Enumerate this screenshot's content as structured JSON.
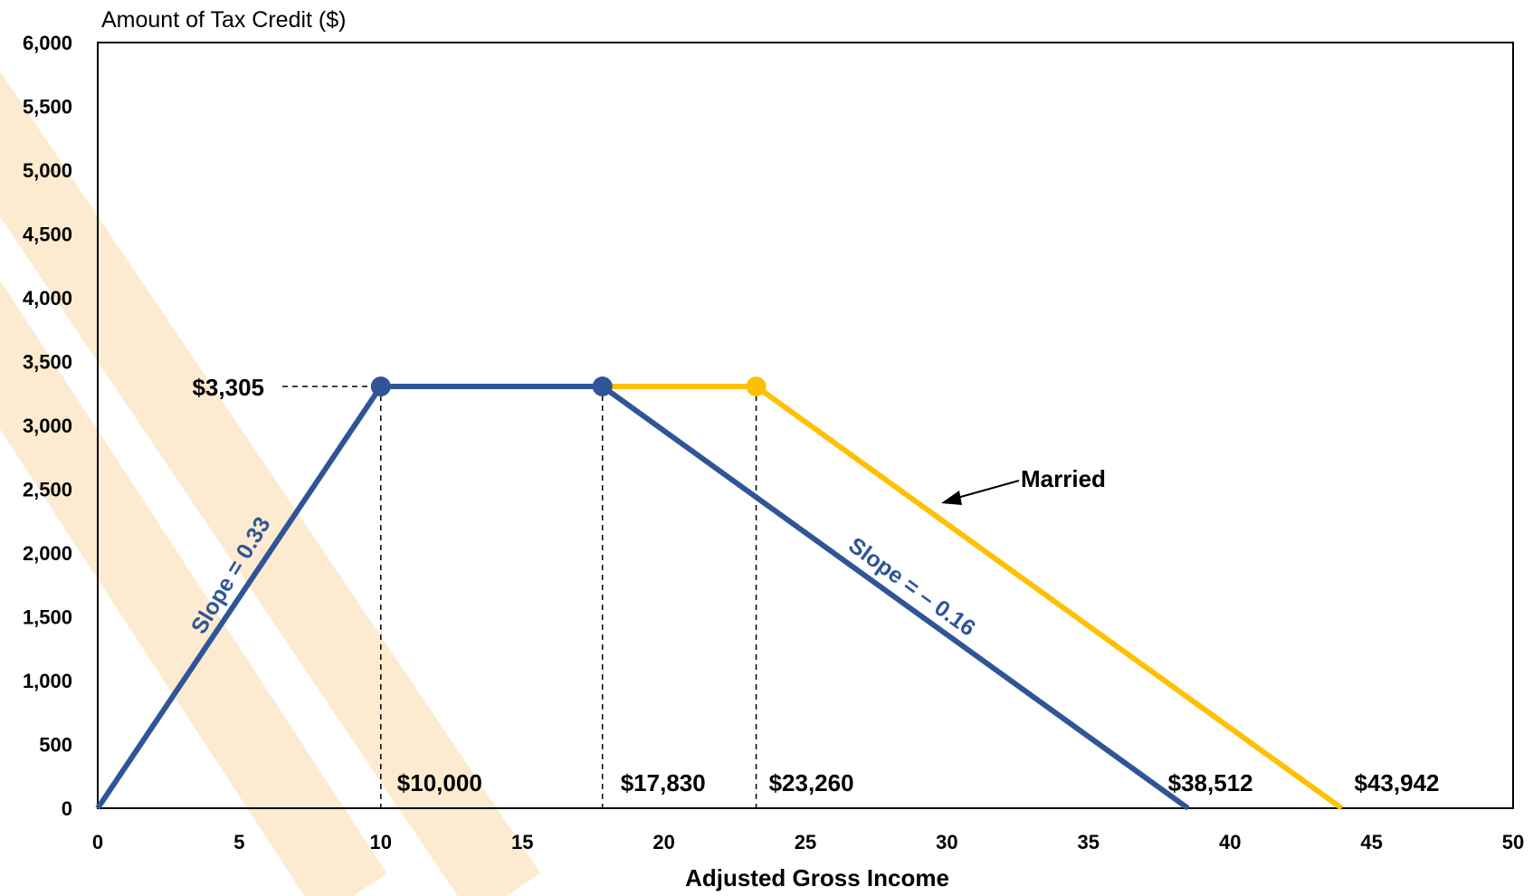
{
  "chart_data": {
    "type": "line",
    "title": "",
    "ylabel": "Amount of Tax Credit ($)",
    "xlabel": "Adjusted Gross Income",
    "xlim": [
      0,
      50
    ],
    "ylim": [
      0,
      6000
    ],
    "x_ticks": [
      0,
      5,
      10,
      15,
      20,
      25,
      30,
      35,
      40,
      45,
      50
    ],
    "y_ticks": [
      "0",
      "500",
      "1,000",
      "1,500",
      "2,000",
      "2,500",
      "3,000",
      "3,500",
      "4,000",
      "4,500",
      "5,000",
      "5,500",
      "6,000"
    ],
    "y_tick_values": [
      0,
      500,
      1000,
      1500,
      2000,
      2500,
      3000,
      3500,
      4000,
      4500,
      5000,
      5500,
      6000
    ],
    "grid": false,
    "series": [
      {
        "name": "Married",
        "color": "#FFC000",
        "points": [
          [
            17.83,
            3305
          ],
          [
            23.26,
            3305
          ],
          [
            43.942,
            0
          ]
        ],
        "markers": [
          [
            23.26,
            3305
          ]
        ]
      },
      {
        "name": "",
        "color": "#2F5597",
        "points": [
          [
            0,
            0
          ],
          [
            10,
            3305
          ],
          [
            17.83,
            3305
          ],
          [
            38.512,
            0
          ]
        ],
        "markers": [
          [
            10,
            3305
          ],
          [
            17.83,
            3305
          ]
        ]
      }
    ],
    "annotations": {
      "credit_label": "$3,305",
      "x_labels": [
        {
          "text": "$10,000",
          "x": 10
        },
        {
          "text": "$17,830",
          "x": 17.83
        },
        {
          "text": "$23,260",
          "x": 23.26
        },
        {
          "text": "$38,512",
          "x": 38.512
        },
        {
          "text": "$43,942",
          "x": 43.942
        }
      ],
      "slope_up": "Slope = 0.33",
      "slope_down": "Slope = – 0.16",
      "married_label": "Married"
    },
    "colors": {
      "single": "#2F5597",
      "married": "#FFC000",
      "watermark": "#FCEBD0"
    }
  }
}
